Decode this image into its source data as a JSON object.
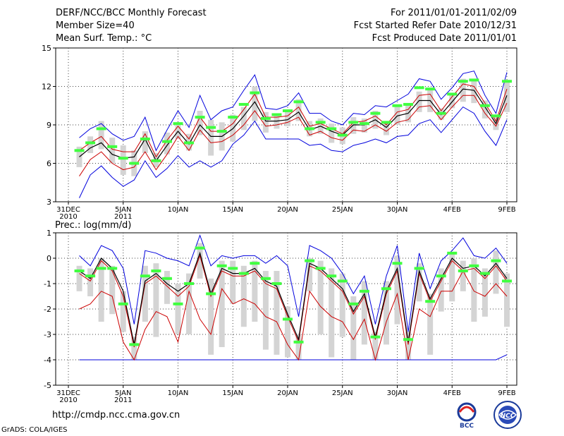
{
  "header": {
    "title": "DERF/NCC/BCC Monthly Forecast",
    "member_size": "Member Size=40",
    "variable": "Mean Surf. Temp.: °C",
    "period": "For 2011/01/01-2011/02/09",
    "started": "Fcst Started Refer Date 2010/12/31",
    "produced": "Fcst Produced Date 2011/01/01"
  },
  "footer": {
    "url": "http://cmdp.ncc.cma.gov.cn",
    "credit": "GrADS: COLA/IGES",
    "logo_text": "BCC",
    "logo2_text": "NCC"
  },
  "colors": {
    "box": "#d4d4d4",
    "median": "#40ff40",
    "max": "#0000dd",
    "min": "#0000dd",
    "p75": "#cc0000",
    "p25": "#cc0000",
    "mean": "#000000",
    "grid": "#444444"
  },
  "chart_data": [
    {
      "type": "line",
      "title": "Mean Surf. Temp.: °C",
      "x": [
        0,
        1,
        2,
        3,
        4,
        5,
        6,
        7,
        8,
        9,
        10,
        11,
        12,
        13,
        14,
        15,
        16,
        17,
        18,
        19,
        20,
        21,
        22,
        23,
        24,
        25,
        26,
        27,
        28,
        29,
        30,
        31,
        32,
        33,
        34,
        35,
        36,
        37,
        38,
        39,
        40
      ],
      "ylim": [
        3,
        15
      ],
      "yticks": [
        3,
        6,
        9,
        12,
        15
      ],
      "xticks": [
        {
          "x": 0,
          "label": "31DEC",
          "sub": "2010"
        },
        {
          "x": 5,
          "label": "5JAN",
          "sub": "2011"
        },
        {
          "x": 10,
          "label": "10JAN",
          "sub": ""
        },
        {
          "x": 15,
          "label": "15JAN",
          "sub": ""
        },
        {
          "x": 20,
          "label": "20JAN",
          "sub": ""
        },
        {
          "x": 25,
          "label": "25JAN",
          "sub": ""
        },
        {
          "x": 30,
          "label": "30JAN",
          "sub": ""
        },
        {
          "x": 35,
          "label": "4FEB",
          "sub": ""
        },
        {
          "x": 40,
          "label": "9FEB",
          "sub": ""
        }
      ],
      "series": [
        {
          "name": "max",
          "values": [
            null,
            8.0,
            8.7,
            9.1,
            8.3,
            7.8,
            8.1,
            9.6,
            7.0,
            8.6,
            10.1,
            8.8,
            11.3,
            9.4,
            10.1,
            10.4,
            11.7,
            12.9,
            10.3,
            10.2,
            10.5,
            11.5,
            9.9,
            9.9,
            9.3,
            9.0,
            9.9,
            9.8,
            10.5,
            10.4,
            10.9,
            11.4,
            12.6,
            12.4,
            11.0,
            11.9,
            13.0,
            13.2,
            11.3,
            9.9,
            13.1
          ]
        },
        {
          "name": "p75",
          "values": [
            null,
            7.0,
            7.6,
            8.1,
            7.1,
            6.9,
            6.9,
            8.3,
            6.5,
            7.8,
            8.9,
            7.9,
            9.6,
            8.5,
            8.5,
            9.1,
            10.2,
            11.4,
            9.6,
            9.6,
            9.7,
            10.4,
            8.9,
            9.1,
            8.7,
            8.3,
            9.2,
            9.3,
            9.7,
            9.0,
            10.0,
            10.2,
            11.3,
            11.4,
            10.1,
            11.2,
            12.2,
            12.0,
            10.7,
            9.3,
            11.8
          ]
        },
        {
          "name": "mean",
          "values": [
            null,
            6.5,
            7.2,
            7.6,
            6.7,
            6.4,
            6.5,
            7.9,
            6.2,
            7.4,
            8.5,
            7.5,
            9.0,
            8.1,
            8.1,
            8.7,
            9.7,
            10.8,
            9.3,
            9.3,
            9.4,
            10.0,
            8.6,
            8.9,
            8.5,
            8.2,
            9.0,
            9.0,
            9.4,
            8.8,
            9.7,
            9.9,
            10.9,
            10.9,
            9.8,
            10.8,
            11.8,
            11.7,
            10.4,
            9.1,
            11.3
          ]
        },
        {
          "name": "p25",
          "values": [
            null,
            5.0,
            6.3,
            6.9,
            6.0,
            5.5,
            5.7,
            6.9,
            5.5,
            6.7,
            8.1,
            7.0,
            8.6,
            7.6,
            7.7,
            8.2,
            9.0,
            10.1,
            8.9,
            9.0,
            9.2,
            9.6,
            8.2,
            8.5,
            8.0,
            7.8,
            8.6,
            8.5,
            9.0,
            8.5,
            9.2,
            9.4,
            10.4,
            10.5,
            9.4,
            10.4,
            11.3,
            11.3,
            9.9,
            8.9,
            10.7
          ]
        },
        {
          "name": "min",
          "values": [
            null,
            3.3,
            5.1,
            5.8,
            4.9,
            4.2,
            4.7,
            6.2,
            4.9,
            5.6,
            6.6,
            5.7,
            6.2,
            5.7,
            6.2,
            7.5,
            8.2,
            9.3,
            7.9,
            7.9,
            7.9,
            7.9,
            7.4,
            7.5,
            7.0,
            6.9,
            7.4,
            7.6,
            7.9,
            7.6,
            8.1,
            8.2,
            9.1,
            9.4,
            8.4,
            9.4,
            10.4,
            9.9,
            8.5,
            7.4,
            9.4
          ]
        },
        {
          "name": "box_hi",
          "values": [
            null,
            7.3,
            8.1,
            9.3,
            8.0,
            7.4,
            7.0,
            8.5,
            6.8,
            8.4,
            9.2,
            8.3,
            10.1,
            9.4,
            9.2,
            9.8,
            10.4,
            12.0,
            10.0,
            9.9,
            10.2,
            11.0,
            9.3,
            9.5,
            9.1,
            8.8,
            9.6,
            9.5,
            10.1,
            9.2,
            10.4,
            10.6,
            11.6,
            11.8,
            10.3,
            11.5,
            12.6,
            12.6,
            10.9,
            9.6,
            12.4
          ]
        },
        {
          "name": "box_lo",
          "values": [
            null,
            5.7,
            6.8,
            7.1,
            6.0,
            5.1,
            5.0,
            6.8,
            5.7,
            6.7,
            7.9,
            7.0,
            8.2,
            6.6,
            7.0,
            7.7,
            8.6,
            9.3,
            8.4,
            8.7,
            8.9,
            9.3,
            8.1,
            8.3,
            7.6,
            7.5,
            8.3,
            8.4,
            8.7,
            8.2,
            9.0,
            9.2,
            10.0,
            10.0,
            9.4,
            10.3,
            10.8,
            10.7,
            9.5,
            8.6,
            10.0
          ]
        },
        {
          "name": "median",
          "values": [
            null,
            7.0,
            7.6,
            8.7,
            7.3,
            6.4,
            6.0,
            7.9,
            6.2,
            7.7,
            9.1,
            7.6,
            9.6,
            8.8,
            8.5,
            9.6,
            10.6,
            11.5,
            9.5,
            9.8,
            10.1,
            10.8,
            8.7,
            9.2,
            8.7,
            8.2,
            9.2,
            9.1,
            9.9,
            9.2,
            10.5,
            10.6,
            11.9,
            11.8,
            9.9,
            11.4,
            12.4,
            12.5,
            10.5,
            9.7,
            12.4
          ]
        }
      ]
    },
    {
      "type": "line",
      "title": "Prec.: log(mm/d)",
      "x": [
        0,
        1,
        2,
        3,
        4,
        5,
        6,
        7,
        8,
        9,
        10,
        11,
        12,
        13,
        14,
        15,
        16,
        17,
        18,
        19,
        20,
        21,
        22,
        23,
        24,
        25,
        26,
        27,
        28,
        29,
        30,
        31,
        32,
        33,
        34,
        35,
        36,
        37,
        38,
        39,
        40
      ],
      "ylim": [
        -5,
        1
      ],
      "yticks": [
        -5,
        -4,
        -3,
        -2,
        -1,
        0,
        1
      ],
      "xticks": [
        {
          "x": 0,
          "label": "31DEC",
          "sub": "2010"
        },
        {
          "x": 5,
          "label": "5JAN",
          "sub": "2011"
        },
        {
          "x": 10,
          "label": "10JAN",
          "sub": ""
        },
        {
          "x": 15,
          "label": "15JAN",
          "sub": ""
        },
        {
          "x": 20,
          "label": "20JAN",
          "sub": ""
        },
        {
          "x": 25,
          "label": "25JAN",
          "sub": ""
        },
        {
          "x": 30,
          "label": "30JAN",
          "sub": ""
        },
        {
          "x": 35,
          "label": "4FEB",
          "sub": ""
        },
        {
          "x": 40,
          "label": "9FEB",
          "sub": ""
        }
      ],
      "series": [
        {
          "name": "max",
          "values": [
            null,
            0.1,
            -0.3,
            0.5,
            0.3,
            -0.4,
            -2.6,
            0.3,
            0.2,
            0.0,
            -0.1,
            -0.3,
            0.9,
            -0.3,
            0.1,
            0.0,
            0.1,
            0.1,
            -0.2,
            0.1,
            -0.3,
            -2.3,
            0.5,
            0.3,
            0.0,
            -0.6,
            -1.4,
            -0.7,
            -2.6,
            -0.7,
            0.5,
            -2.9,
            0.2,
            -1.2,
            -0.1,
            0.3,
            0.8,
            0.1,
            0.0,
            0.4,
            -0.2
          ]
        },
        {
          "name": "mean",
          "values": [
            null,
            -0.5,
            -0.8,
            0.0,
            -0.4,
            -1.3,
            -3.4,
            -0.9,
            -0.6,
            -1.0,
            -1.3,
            -1.0,
            0.2,
            -1.4,
            -0.4,
            -0.6,
            -0.6,
            -0.4,
            -0.9,
            -1.1,
            -2.2,
            -3.2,
            -0.2,
            -0.4,
            -0.8,
            -1.2,
            -2.1,
            -1.4,
            -3.1,
            -1.3,
            -0.4,
            -3.3,
            -0.5,
            -1.6,
            -0.8,
            0.0,
            -0.4,
            -0.3,
            -0.7,
            -0.2,
            -0.8
          ]
        },
        {
          "name": "p75",
          "values": [
            null,
            -0.6,
            -0.9,
            -0.1,
            -0.5,
            -1.5,
            -3.5,
            -1.0,
            -0.7,
            -1.1,
            -1.5,
            -1.1,
            0.1,
            -1.5,
            -0.5,
            -0.7,
            -0.7,
            -0.5,
            -1.0,
            -1.2,
            -2.3,
            -3.3,
            -0.3,
            -0.5,
            -0.9,
            -1.3,
            -2.2,
            -1.5,
            -3.2,
            -1.4,
            -0.5,
            -3.4,
            -0.6,
            -1.7,
            -0.9,
            -0.1,
            -0.5,
            -0.4,
            -0.8,
            -0.3,
            -0.9
          ]
        },
        {
          "name": "p25",
          "values": [
            null,
            -2.0,
            -1.8,
            -1.3,
            -1.5,
            -3.3,
            -4.0,
            -2.8,
            -2.1,
            -2.3,
            -3.3,
            -1.3,
            -2.4,
            -3.0,
            -1.2,
            -1.8,
            -1.6,
            -1.8,
            -2.3,
            -2.5,
            -3.4,
            -4.0,
            -1.3,
            -1.9,
            -2.3,
            -2.5,
            -3.2,
            -2.4,
            -4.0,
            -2.5,
            -1.4,
            -4.0,
            -2.0,
            -2.3,
            -1.3,
            -1.3,
            -0.5,
            -1.3,
            -1.5,
            -1.0,
            -1.5
          ]
        },
        {
          "name": "min",
          "values": [
            null,
            -4.0,
            -4.0,
            -4.0,
            -4.0,
            -4.0,
            -4.0,
            -4.0,
            -4.0,
            -4.0,
            -4.0,
            -4.0,
            -4.0,
            -4.0,
            -4.0,
            -4.0,
            -4.0,
            -4.0,
            -4.0,
            -4.0,
            -4.0,
            -4.0,
            -4.0,
            -4.0,
            -4.0,
            -4.0,
            -4.0,
            -4.0,
            -4.0,
            -4.0,
            -4.0,
            -4.0,
            -4.0,
            -4.0,
            -4.0,
            -4.0,
            -4.0,
            -4.0,
            -4.0,
            -4.0,
            -3.8
          ]
        },
        {
          "name": "box_hi",
          "values": [
            null,
            -0.3,
            -0.4,
            0.0,
            -0.3,
            -1.3,
            -3.1,
            -0.3,
            -0.2,
            -0.5,
            -1.0,
            -0.6,
            0.6,
            -0.8,
            -0.1,
            -0.1,
            -0.3,
            -0.1,
            -0.5,
            -0.5,
            -1.9,
            -3.0,
            0.0,
            -0.1,
            -0.4,
            -0.6,
            -1.5,
            -0.9,
            -2.9,
            -0.9,
            0.1,
            -2.9,
            -0.2,
            -1.4,
            -0.4,
            0.2,
            -0.1,
            0.0,
            -0.4,
            0.3,
            -0.6
          ]
        },
        {
          "name": "box_lo",
          "values": [
            null,
            -1.3,
            -1.5,
            -2.5,
            -2.2,
            -2.9,
            -4.0,
            -2.5,
            -3.1,
            -1.8,
            -3.0,
            -3.0,
            -0.8,
            -3.8,
            -3.5,
            -1.8,
            -2.7,
            -2.5,
            -3.6,
            -3.8,
            -3.9,
            -4.0,
            -1.3,
            -3.0,
            -3.9,
            -3.1,
            -4.0,
            -3.4,
            -4.0,
            -3.4,
            -2.6,
            -4.0,
            -1.7,
            -3.8,
            -2.1,
            -1.7,
            -1.3,
            -2.5,
            -2.3,
            -1.4,
            -2.7
          ]
        },
        {
          "name": "median",
          "values": [
            null,
            -0.5,
            -0.7,
            -0.4,
            -0.4,
            -1.8,
            -3.4,
            -0.7,
            -0.5,
            -0.8,
            -1.8,
            -1.0,
            0.4,
            -1.4,
            -0.3,
            -0.4,
            -0.6,
            -0.2,
            -0.8,
            -1.0,
            -2.4,
            -3.3,
            -0.1,
            -0.4,
            -0.7,
            -0.9,
            -1.8,
            -1.3,
            -3.1,
            -1.2,
            -0.2,
            -3.2,
            -0.4,
            -1.7,
            -0.7,
            0.2,
            -0.5,
            -0.3,
            -0.6,
            -0.1,
            -0.9
          ]
        }
      ]
    }
  ]
}
